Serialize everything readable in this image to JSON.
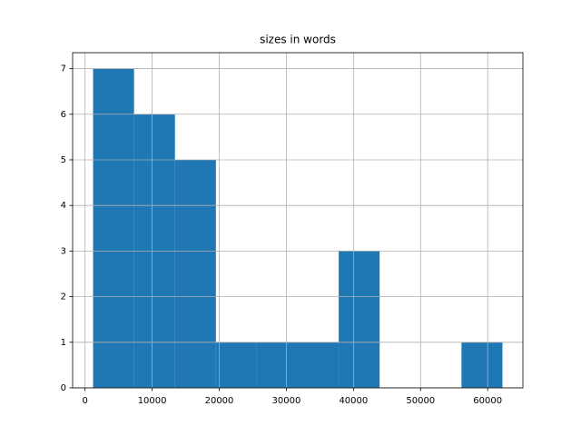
{
  "chart_data": {
    "type": "histogram",
    "title": "sizes in words",
    "bins": [
      1200,
      7300,
      13400,
      19500,
      25600,
      31700,
      37800,
      43900,
      50000,
      56100,
      62200
    ],
    "values": [
      7,
      6,
      5,
      1,
      1,
      1,
      3,
      0,
      0,
      1
    ],
    "color": "#1f77b4",
    "xlim": [
      -1850,
      65250
    ],
    "xticks": [
      0,
      10000,
      20000,
      30000,
      40000,
      50000,
      60000
    ],
    "ylim": [
      0,
      7.35
    ],
    "yticks": [
      0,
      1,
      2,
      3,
      4,
      5,
      6,
      7
    ],
    "grid": true
  }
}
